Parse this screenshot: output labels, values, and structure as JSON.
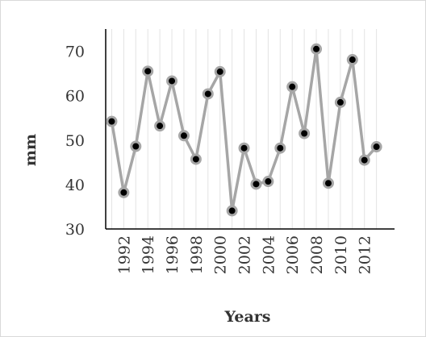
{
  "chart_data": {
    "type": "line",
    "title": "",
    "xlabel": "Years",
    "ylabel": "mm",
    "ylim": [
      30,
      75
    ],
    "yticks": [
      30,
      40,
      50,
      60,
      70
    ],
    "xlim": [
      1990.5,
      2014.5
    ],
    "xtick_labels": [
      "1992",
      "1994",
      "1996",
      "1998",
      "2000",
      "2002",
      "2004",
      "2006",
      "2008",
      "2010",
      "2012"
    ],
    "grid": "vertical",
    "legend": "none",
    "colors": {
      "line": "#a6a6a6",
      "marker": "#000000",
      "marker_edge": "#a6a6a6",
      "grid": "#e3e3e3",
      "axis": "#000000"
    },
    "series": [
      {
        "x": [
          1991,
          1992,
          1993,
          1994,
          1995,
          1996,
          1997,
          1998,
          1999,
          2000,
          2001,
          2002,
          2003,
          2004,
          2005,
          2006,
          2007,
          2008,
          2009,
          2010,
          2011,
          2012,
          2013
        ],
        "values": [
          54.2,
          38.2,
          48.6,
          65.5,
          53.2,
          63.3,
          51.0,
          45.7,
          60.4,
          65.4,
          34.1,
          48.2,
          40.1,
          40.7,
          48.2,
          62.0,
          51.5,
          70.5,
          40.3,
          58.5,
          68.1,
          45.5,
          48.5
        ]
      }
    ]
  }
}
